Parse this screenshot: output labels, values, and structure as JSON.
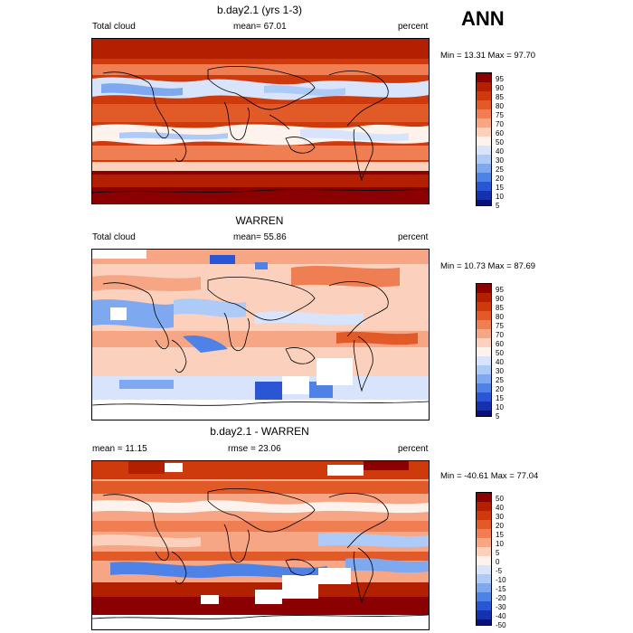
{
  "season": "ANN",
  "panels": [
    {
      "title": "b.day2.1 (yrs 1-3)",
      "left_label": "Total cloud",
      "center_label": "mean=  67.01",
      "units": "percent",
      "minmax": "Min =  13.31 Max =  97.70",
      "colorbar": [
        "95",
        "90",
        "85",
        "80",
        "75",
        "70",
        "60",
        "50",
        "40",
        "30",
        "25",
        "20",
        "15",
        "10",
        "5"
      ]
    },
    {
      "title": "WARREN",
      "left_label": "Total cloud",
      "center_label": "mean=  55.86",
      "units": "percent",
      "minmax": "Min =  10.73 Max =  87.69",
      "colorbar": [
        "95",
        "90",
        "85",
        "80",
        "75",
        "70",
        "60",
        "50",
        "40",
        "30",
        "25",
        "20",
        "15",
        "10",
        "5"
      ]
    },
    {
      "title": "b.day2.1 - WARREN",
      "left_label": "mean =  11.15",
      "center_label": "rmse =  23.06",
      "units": "percent",
      "minmax": "Min = -40.61 Max =  77.04",
      "colorbar": [
        "50",
        "40",
        "30",
        "20",
        "15",
        "10",
        "5",
        "0",
        "-5",
        "-10",
        "-15",
        "-20",
        "-30",
        "-40",
        "-50"
      ]
    }
  ],
  "colors": {
    "scale": [
      "#8b0000",
      "#b22000",
      "#cf3a0c",
      "#e25a28",
      "#ef7e52",
      "#f6a585",
      "#fbd1bd",
      "#fdf2ec",
      "#d7e4fb",
      "#aecbf7",
      "#7ea9f0",
      "#4f82e6",
      "#2a56d6",
      "#1432b0",
      "#0a1078"
    ]
  }
}
